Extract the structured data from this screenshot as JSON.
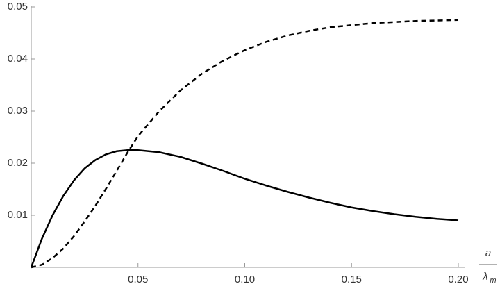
{
  "chart_data": {
    "type": "line",
    "x_label": {
      "numerator": "a",
      "denominator": "λ",
      "denominator_subscript": "m"
    },
    "x": [
      0,
      0.005,
      0.01,
      0.015,
      0.02,
      0.025,
      0.03,
      0.035,
      0.04,
      0.045,
      0.05,
      0.06,
      0.07,
      0.08,
      0.09,
      0.1,
      0.11,
      0.12,
      0.13,
      0.14,
      0.15,
      0.16,
      0.17,
      0.18,
      0.19,
      0.2
    ],
    "series": [
      {
        "color": "#000000",
        "dash": false,
        "values": [
          0,
          0.0055,
          0.01,
          0.0137,
          0.0167,
          0.019,
          0.0206,
          0.0217,
          0.0223,
          0.0225,
          0.0225,
          0.0221,
          0.0212,
          0.0199,
          0.0185,
          0.017,
          0.0157,
          0.0145,
          0.0134,
          0.0124,
          0.0115,
          0.0108,
          0.0102,
          0.0097,
          0.0093,
          0.009
        ]
      },
      {
        "color": "#000000",
        "dash": true,
        "values": [
          0,
          0.0005,
          0.0018,
          0.0036,
          0.006,
          0.0088,
          0.0118,
          0.0151,
          0.0185,
          0.022,
          0.0252,
          0.03,
          0.034,
          0.0372,
          0.0397,
          0.0417,
          0.0433,
          0.0445,
          0.0454,
          0.0461,
          0.0465,
          0.0469,
          0.0471,
          0.0473,
          0.0474,
          0.0475
        ]
      }
    ],
    "xlim": [
      0,
      0.2
    ],
    "ylim": [
      0,
      0.05
    ],
    "xticks": [
      0.05,
      {
        "value": 0.1,
        "label": "0.10"
      },
      0.15,
      {
        "value": 0.2,
        "label": "0.20"
      }
    ],
    "yticks": [
      0.01,
      0.02,
      0.03,
      0.04,
      0.05
    ]
  }
}
